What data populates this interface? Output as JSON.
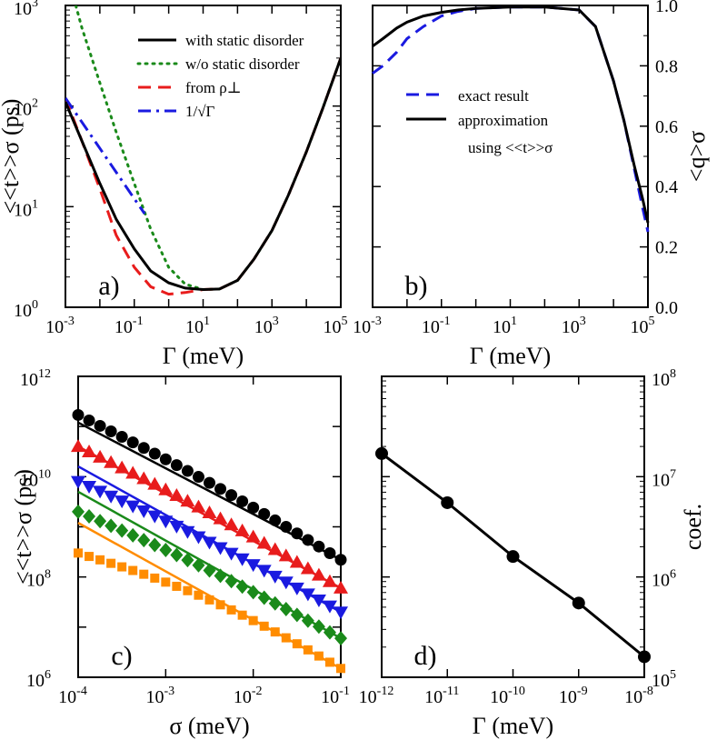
{
  "chart_data": [
    {
      "id": "a",
      "type": "line",
      "panel_label": "a)",
      "xlabel": "Γ (meV)",
      "ylabel": "<<t>>σ (ps)",
      "xscale": "log",
      "yscale": "log",
      "xlim": [
        0.001,
        100000
      ],
      "ylim": [
        1,
        1000
      ],
      "xticks": [
        {
          "value": 0.001,
          "base": "10",
          "exp": "-3"
        },
        {
          "value": 0.1,
          "base": "10",
          "exp": "-1"
        },
        {
          "value": 10,
          "base": "10",
          "exp": "1"
        },
        {
          "value": 1000,
          "base": "10",
          "exp": "3"
        },
        {
          "value": 100000,
          "base": "10",
          "exp": "5"
        }
      ],
      "yticks": [
        {
          "value": 1,
          "base": "10",
          "exp": "0"
        },
        {
          "value": 10,
          "base": "10",
          "exp": "1"
        },
        {
          "value": 100,
          "base": "10",
          "exp": "2"
        },
        {
          "value": 1000,
          "base": "10",
          "exp": "3"
        }
      ],
      "legend_position": "top-right",
      "series": [
        {
          "name": "with static disorder",
          "color": "#000000",
          "style": "solid",
          "x": [
            0.001,
            0.003,
            0.01,
            0.03,
            0.1,
            0.3,
            1,
            3,
            10,
            30,
            100,
            300,
            1000,
            3000,
            10000,
            30000,
            100000
          ],
          "y": [
            110,
            45,
            17,
            7.5,
            3.8,
            2.3,
            1.75,
            1.55,
            1.5,
            1.52,
            1.85,
            3.0,
            5.8,
            13,
            35,
            95,
            300
          ]
        },
        {
          "name": "w/o static disorder",
          "color": "#1a8a1a",
          "style": "dotted",
          "x": [
            0.002,
            0.003,
            0.01,
            0.03,
            0.1,
            0.3,
            1,
            3,
            10,
            30,
            100,
            300,
            1000,
            3000,
            10000,
            30000,
            100000
          ],
          "y": [
            1000,
            600,
            170,
            55,
            17,
            6.0,
            2.5,
            1.7,
            1.5,
            1.52,
            1.85,
            3.0,
            5.8,
            13,
            35,
            95,
            300
          ]
        },
        {
          "name": "from ρ⊥",
          "color": "#e81c1c",
          "style": "dashed",
          "x": [
            0.001,
            0.003,
            0.01,
            0.03,
            0.1,
            0.3,
            1,
            3,
            10,
            30,
            100,
            300,
            1000,
            3000,
            10000,
            30000,
            100000
          ],
          "y": [
            120,
            45,
            15,
            5.2,
            2.5,
            1.6,
            1.35,
            1.4,
            1.5,
            1.52,
            1.85,
            3.0,
            5.8,
            13,
            35,
            95,
            300
          ]
        },
        {
          "name": "1/√Γ",
          "color": "#1a1ae0",
          "style": "dashdot",
          "x": [
            0.001,
            0.01,
            0.1,
            0.2
          ],
          "y": [
            120,
            38,
            12,
            8.5
          ]
        }
      ]
    },
    {
      "id": "b",
      "type": "line",
      "panel_label": "b)",
      "xlabel": "Γ (meV)",
      "ylabel": "<q>σ",
      "xscale": "log",
      "yscale": "linear",
      "xlim": [
        0.001,
        100000
      ],
      "ylim": [
        0,
        1
      ],
      "xticks": [
        {
          "value": 0.001,
          "base": "10",
          "exp": "-3"
        },
        {
          "value": 0.1,
          "base": "10",
          "exp": "-1"
        },
        {
          "value": 10,
          "base": "10",
          "exp": "1"
        },
        {
          "value": 1000,
          "base": "10",
          "exp": "3"
        },
        {
          "value": 100000,
          "base": "10",
          "exp": "5"
        }
      ],
      "yticks": [
        "0.0",
        "0.2",
        "0.4",
        "0.6",
        "0.8",
        "1.0"
      ],
      "yaxis_side": "right",
      "legend_position": "middle-left",
      "annotation": "using <<t>>σ",
      "series": [
        {
          "name": "exact result",
          "color": "#1a1ae0",
          "style": "dashed",
          "x": [
            0.001,
            0.002,
            0.005,
            0.01,
            0.03,
            0.1,
            0.3,
            1,
            10,
            100,
            1000,
            3000,
            10000,
            20000,
            40000,
            70000,
            100000
          ],
          "y": [
            0.775,
            0.8,
            0.845,
            0.89,
            0.93,
            0.965,
            0.98,
            0.99,
            0.995,
            0.995,
            0.985,
            0.93,
            0.75,
            0.62,
            0.46,
            0.33,
            0.25
          ]
        },
        {
          "name": "approximation",
          "color": "#000000",
          "style": "solid",
          "x": [
            0.001,
            0.002,
            0.005,
            0.01,
            0.03,
            0.1,
            0.3,
            1,
            10,
            100,
            1000,
            3000,
            10000,
            20000,
            40000,
            70000,
            100000
          ],
          "y": [
            0.865,
            0.89,
            0.925,
            0.945,
            0.965,
            0.977,
            0.985,
            0.99,
            0.995,
            0.995,
            0.985,
            0.93,
            0.75,
            0.62,
            0.47,
            0.36,
            0.28
          ]
        }
      ]
    },
    {
      "id": "c",
      "type": "scatter",
      "panel_label": "c)",
      "xlabel": "σ (meV)",
      "ylabel": "<<t>>σ (ps)",
      "xscale": "log",
      "yscale": "log",
      "xlim": [
        0.0001,
        0.1
      ],
      "ylim": [
        1000000,
        1000000000000
      ],
      "xticks": [
        {
          "value": 0.0001,
          "base": "10",
          "exp": "-4"
        },
        {
          "value": 0.001,
          "base": "10",
          "exp": "-3"
        },
        {
          "value": 0.01,
          "base": "10",
          "exp": "-2"
        },
        {
          "value": 0.1,
          "base": "10",
          "exp": "-1"
        }
      ],
      "yticks": [
        {
          "value": 1000000,
          "base": "10",
          "exp": "6"
        },
        {
          "value": 100000000,
          "base": "10",
          "exp": "8"
        },
        {
          "value": 10000000000,
          "base": "10",
          "exp": "10"
        },
        {
          "value": 1000000000000,
          "base": "10",
          "exp": "12"
        }
      ],
      "series": [
        {
          "marker": "circle",
          "color": "#000000",
          "start_y": 170000000000.0,
          "end_y": 220000000.0,
          "fit_start_y": 120000000000.0
        },
        {
          "marker": "triangle-up",
          "color": "#e81c1c",
          "start_y": 40000000000.0,
          "end_y": 60000000.0,
          "fit_start_y": 40000000000.0
        },
        {
          "marker": "triangle-down",
          "color": "#1a1ae0",
          "start_y": 8000000000.0,
          "end_y": 20000000.0,
          "fit_start_y": 16000000000.0
        },
        {
          "marker": "diamond",
          "color": "#1a8a1a",
          "start_y": 2000000000.0,
          "end_y": 6000000.0,
          "fit_start_y": 5000000000.0
        },
        {
          "marker": "square",
          "color": "#ff8c00",
          "start_y": 300000000.0,
          "end_y": 1500000.0,
          "fit_start_y": 1200000000.0
        }
      ]
    },
    {
      "id": "d",
      "type": "scatter",
      "panel_label": "d)",
      "xlabel": "Γ (meV)",
      "ylabel": "coef.",
      "xscale": "log",
      "yscale": "log",
      "xlim": [
        1e-12,
        1e-08
      ],
      "ylim": [
        100000,
        100000000
      ],
      "xticks": [
        {
          "value": 1e-12,
          "base": "10",
          "exp": "-12"
        },
        {
          "value": 1e-11,
          "base": "10",
          "exp": "-11"
        },
        {
          "value": 1e-10,
          "base": "10",
          "exp": "-10"
        },
        {
          "value": 1e-09,
          "base": "10",
          "exp": "-9"
        },
        {
          "value": 1e-08,
          "base": "10",
          "exp": "-8"
        }
      ],
      "yticks": [
        {
          "value": 100000,
          "base": "10",
          "exp": "5"
        },
        {
          "value": 1000000,
          "base": "10",
          "exp": "6"
        },
        {
          "value": 10000000,
          "base": "10",
          "exp": "7"
        },
        {
          "value": 100000000,
          "base": "10",
          "exp": "8"
        }
      ],
      "yaxis_side": "right",
      "series": [
        {
          "marker": "circle",
          "color": "#000000",
          "x": [
            1e-12,
            1e-11,
            1e-10,
            1e-09,
            1e-08
          ],
          "y": [
            17000000,
            5500000,
            1600000,
            550000,
            160000
          ]
        }
      ]
    }
  ]
}
